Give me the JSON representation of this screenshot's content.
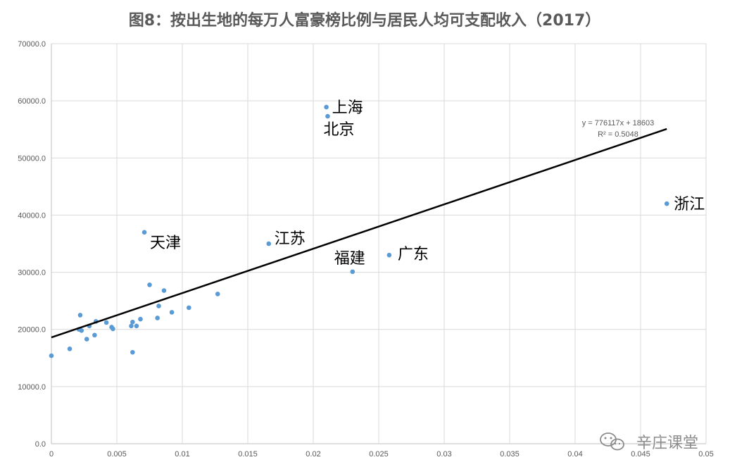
{
  "chart_data": {
    "type": "scatter",
    "title": "图8：按出生地的每万人富豪榜比例与居民人均可支配收入（2017）",
    "xlim": [
      0,
      0.05
    ],
    "ylim": [
      0,
      70000
    ],
    "x_ticks": [
      0,
      0.005,
      0.01,
      0.015,
      0.02,
      0.025,
      0.03,
      0.035,
      0.04,
      0.045,
      0.05
    ],
    "x_tick_labels": [
      "0",
      "0.005",
      "0.01",
      "0.015",
      "0.02",
      "0.025",
      "0.03",
      "0.035",
      "0.04",
      "0.045",
      "0.05"
    ],
    "y_ticks": [
      0,
      10000,
      20000,
      30000,
      40000,
      50000,
      60000,
      70000
    ],
    "y_tick_labels": [
      "0.0",
      "10000.0",
      "20000.0",
      "30000.0",
      "40000.0",
      "50000.0",
      "60000.0",
      "70000.0"
    ],
    "grid": true,
    "legend": "none",
    "series_color": "#5b9bd5",
    "points": [
      {
        "x": 0.0,
        "y": 15400
      },
      {
        "x": 0.0014,
        "y": 16600
      },
      {
        "x": 0.0021,
        "y": 20000
      },
      {
        "x": 0.0022,
        "y": 22500
      },
      {
        "x": 0.0023,
        "y": 19800
      },
      {
        "x": 0.0027,
        "y": 18300
      },
      {
        "x": 0.0029,
        "y": 20600
      },
      {
        "x": 0.0033,
        "y": 19000
      },
      {
        "x": 0.0034,
        "y": 21400
      },
      {
        "x": 0.0042,
        "y": 21200
      },
      {
        "x": 0.0046,
        "y": 20400
      },
      {
        "x": 0.0047,
        "y": 20100
      },
      {
        "x": 0.0061,
        "y": 20600
      },
      {
        "x": 0.0062,
        "y": 16000
      },
      {
        "x": 0.0062,
        "y": 21300
      },
      {
        "x": 0.0065,
        "y": 20600
      },
      {
        "x": 0.0068,
        "y": 21800
      },
      {
        "x": 0.0071,
        "y": 37000
      },
      {
        "x": 0.0075,
        "y": 27800
      },
      {
        "x": 0.0081,
        "y": 22000
      },
      {
        "x": 0.0082,
        "y": 24100
      },
      {
        "x": 0.0086,
        "y": 26800
      },
      {
        "x": 0.0092,
        "y": 23000
      },
      {
        "x": 0.0105,
        "y": 23800
      },
      {
        "x": 0.0127,
        "y": 26200
      },
      {
        "x": 0.0166,
        "y": 35000
      },
      {
        "x": 0.021,
        "y": 58900
      },
      {
        "x": 0.0211,
        "y": 57300
      },
      {
        "x": 0.023,
        "y": 30100
      },
      {
        "x": 0.0258,
        "y": 33000
      },
      {
        "x": 0.047,
        "y": 42000
      }
    ],
    "point_labels": [
      {
        "text": "上海",
        "x": 0.021,
        "y": 58900
      },
      {
        "text": "北京",
        "x": 0.0211,
        "y": 57300
      },
      {
        "text": "浙江",
        "x": 0.047,
        "y": 42000
      },
      {
        "text": "天津",
        "x": 0.0071,
        "y": 37000
      },
      {
        "text": "江苏",
        "x": 0.0166,
        "y": 35000
      },
      {
        "text": "广东",
        "x": 0.0258,
        "y": 33000
      },
      {
        "text": "福建",
        "x": 0.023,
        "y": 30100
      }
    ],
    "trendline": {
      "slope": 776117,
      "intercept": 18603,
      "x_range": [
        0,
        0.047
      ],
      "equation": "y = 776117x + 18603",
      "r2": "R² = 0.5048"
    }
  },
  "watermark": "辛庄课堂",
  "watermark_icon": "wechat-icon"
}
